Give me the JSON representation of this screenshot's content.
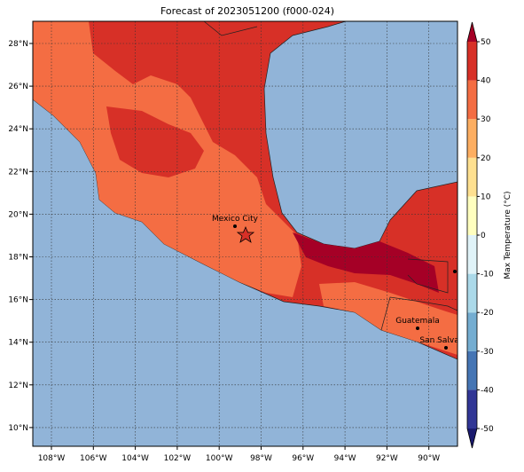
{
  "title": "Forecast of 2023051200 (f000-024)",
  "map": {
    "lon_labels": [
      "108°W",
      "106°W",
      "104°W",
      "102°W",
      "100°W",
      "98°W",
      "96°W",
      "94°W",
      "92°W",
      "90°W"
    ],
    "lat_labels": [
      "28°N",
      "26°N",
      "24°N",
      "22°N",
      "20°N",
      "18°N",
      "16°N",
      "14°N",
      "12°N",
      "10°N"
    ],
    "cities": [
      {
        "name": "Mexico City"
      },
      {
        "name": "Guatemala"
      },
      {
        "name": "San Salvador"
      }
    ]
  },
  "colorbar": {
    "label": "Max Temperature (°C)",
    "ticks": [
      -50,
      -40,
      -30,
      -20,
      -10,
      0,
      10,
      20,
      30,
      40,
      50
    ],
    "colors": [
      "#313695",
      "#4575b4",
      "#74add1",
      "#abd9e9",
      "#e0f3f8",
      "#ffffbf",
      "#fee090",
      "#fdae61",
      "#f46d43",
      "#d73027"
    ],
    "under_color": "#1a1a6e",
    "over_color": "#a50026"
  }
}
